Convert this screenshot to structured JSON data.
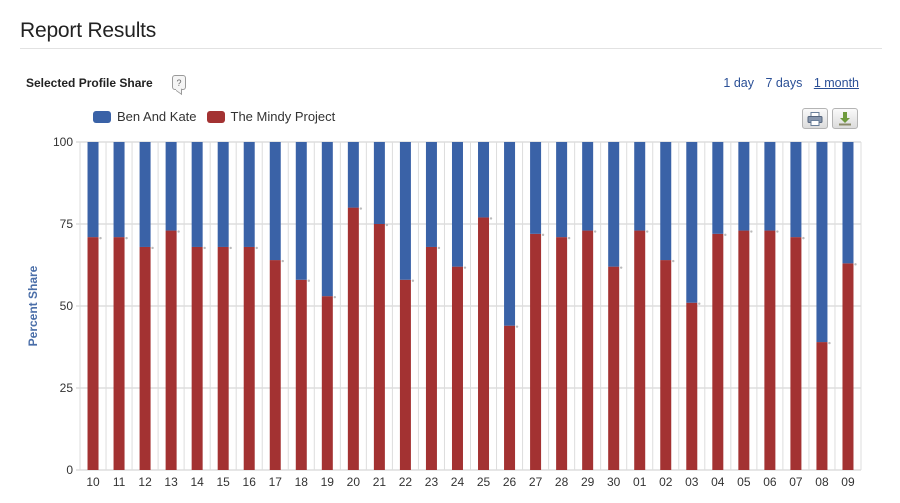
{
  "page": {
    "title": "Report Results",
    "section_label": "Selected Profile Share",
    "help_icon_glyph": "?",
    "range_links": [
      {
        "label": "1 day",
        "active": false
      },
      {
        "label": "7 days",
        "active": false
      },
      {
        "label": "1 month",
        "active": true
      }
    ],
    "toolbar": {
      "print_icon": "printer-icon",
      "download_icon": "download-icon"
    }
  },
  "colors": {
    "series_blue": "#3a62a7",
    "series_red": "#a33232",
    "grid": "#cccccc",
    "axis_title": "#4a6ea8"
  },
  "chart_data": {
    "type": "bar",
    "stacked": true,
    "title": "",
    "xlabel": "",
    "ylabel": "Percent Share",
    "ylim": [
      0,
      100
    ],
    "yticks": [
      0,
      25,
      50,
      75,
      100
    ],
    "categories": [
      "10",
      "11",
      "12",
      "13",
      "14",
      "15",
      "16",
      "17",
      "18",
      "19",
      "20",
      "21",
      "22",
      "23",
      "24",
      "25",
      "26",
      "27",
      "28",
      "29",
      "30",
      "01",
      "02",
      "03",
      "04",
      "05",
      "06",
      "07",
      "08",
      "09"
    ],
    "series": [
      {
        "name": "Ben And Kate",
        "color": "#3a62a7",
        "values": [
          29,
          29,
          32,
          27,
          32,
          32,
          32,
          36,
          42,
          47,
          20,
          25,
          42,
          32,
          38,
          23,
          56,
          28,
          29,
          27,
          38,
          27,
          36,
          49,
          28,
          27,
          27,
          29,
          61,
          37
        ]
      },
      {
        "name": "The Mindy Project",
        "color": "#a33232",
        "values": [
          71,
          71,
          68,
          73,
          68,
          68,
          68,
          64,
          58,
          53,
          80,
          75,
          58,
          68,
          62,
          77,
          44,
          72,
          71,
          73,
          62,
          73,
          64,
          51,
          72,
          73,
          73,
          71,
          39,
          63
        ]
      }
    ],
    "legend": "top-left"
  }
}
